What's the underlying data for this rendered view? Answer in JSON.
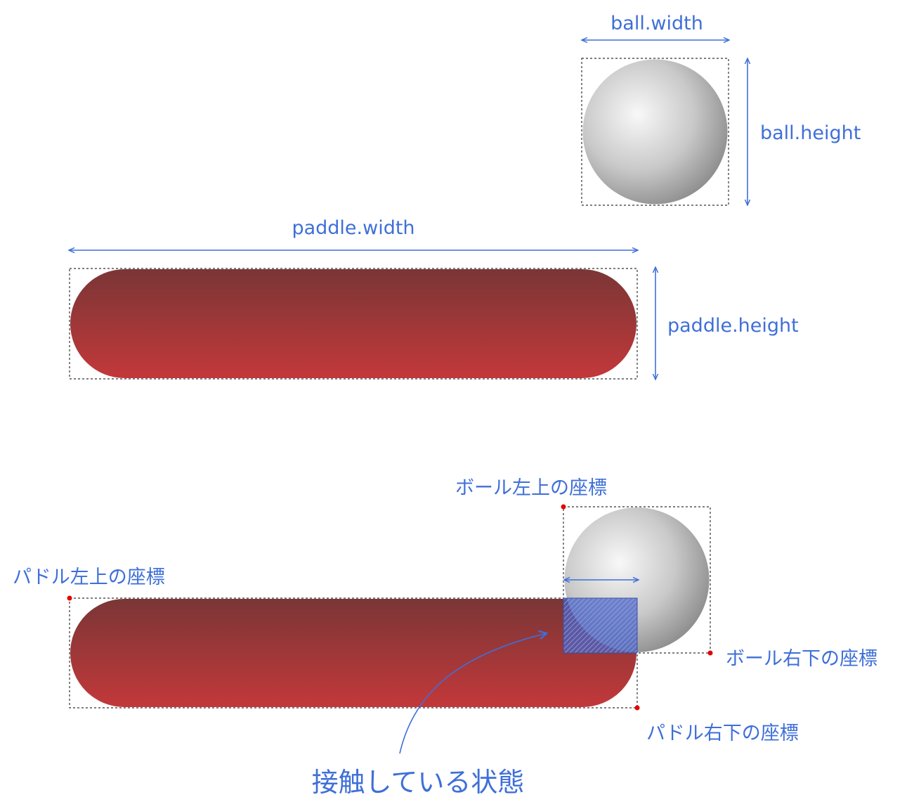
{
  "diagram": {
    "top": {
      "ball_width_label": "ball.width",
      "ball_height_label": "ball.height",
      "paddle_width_label": "paddle.width",
      "paddle_height_label": "paddle.height"
    },
    "bottom": {
      "ball_top_left_label": "ボール左上の座標",
      "ball_bottom_right_label": "ボール右下の座標",
      "paddle_top_left_label": "パドル左上の座標",
      "paddle_bottom_right_label": "パドル右下の座標",
      "contact_label": "接触している状態"
    }
  },
  "colors": {
    "accent": "#3f6fd8",
    "point": "#e60000",
    "paddle_top": "#7a3636",
    "paddle_bottom": "#c3383a",
    "ball_light": "#f6f6f6",
    "ball_dark": "#8a8a8a",
    "overlap_fill": "#4a63c4"
  }
}
